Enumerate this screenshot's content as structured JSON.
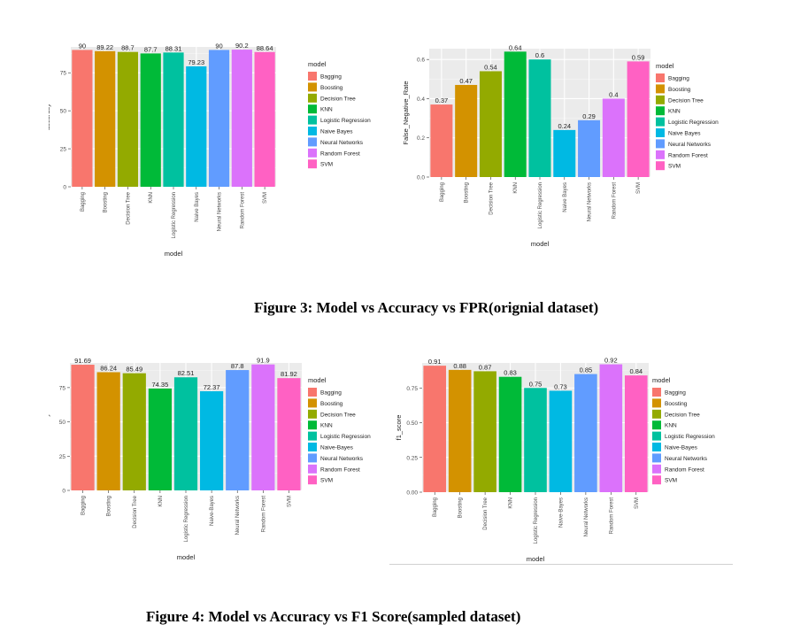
{
  "colors": {
    "Bagging": "#F8766D",
    "Boosting": "#D39200",
    "Decision Tree": "#93AA00",
    "KNN": "#00BA38",
    "Logistic Regression": "#00C19F",
    "Naive Bayes": "#00B9E3",
    "Neural Networks": "#619CFF",
    "Random Forest": "#DB72FB",
    "SVM": "#FF61C3"
  },
  "captions": {
    "figure3": "Figure 3: Model vs Accuracy vs FPR(orignial dataset)",
    "figure4": "Figure 4: Model vs Accuracy vs F1 Score(sampled dataset)"
  },
  "chart_data": [
    {
      "type": "bar",
      "title": "",
      "xlabel": "model",
      "ylabel": "accuracy",
      "legend_title": "model",
      "legend_position": "right",
      "grid": true,
      "categories": [
        "Bagging",
        "Boosting",
        "Decision Tree",
        "KNN",
        "Logistic Regression",
        "Naive Bayes",
        "Neural Networks",
        "Random Forest",
        "SVM"
      ],
      "legend_labels": [
        "Bagging",
        "Boosting",
        "Decision Tree",
        "KNN",
        "Logistic Regression",
        "Naive Bayes",
        "Neural Networks",
        "Random Forest",
        "SVM"
      ],
      "values": [
        90,
        89.22,
        88.7,
        87.7,
        88.31,
        79.23,
        90,
        90.2,
        88.64
      ],
      "data_labels": [
        "90",
        "89.22",
        "88.7",
        "87.7",
        "88.31",
        "79.23",
        "90",
        "90.2",
        "88.64"
      ],
      "ylim": [
        0,
        92
      ],
      "yticks": [
        0,
        25,
        50,
        75
      ],
      "ytick_labels": [
        "0",
        "25",
        "50",
        "75"
      ]
    },
    {
      "type": "bar",
      "title": "",
      "xlabel": "model",
      "ylabel": "False_Negative_Rate",
      "legend_title": "model",
      "legend_position": "right",
      "grid": true,
      "categories": [
        "Bagging",
        "Boosting",
        "Decision Tree",
        "KNN",
        "Logistic Regression",
        "Naive Bayes",
        "Neural Networks",
        "Random Forest",
        "SVM"
      ],
      "legend_labels": [
        "Bagging",
        "Boosting",
        "Decision Tree",
        "KNN",
        "Logistic Regression",
        "Naive Bayes",
        "Neural Networks",
        "Random Forest",
        "SVM"
      ],
      "values": [
        0.37,
        0.47,
        0.54,
        0.64,
        0.6,
        0.24,
        0.29,
        0.4,
        0.59
      ],
      "data_labels": [
        "0.37",
        "0.47",
        "0.54",
        "0.64",
        "0.6",
        "0.24",
        "0.29",
        "0.4",
        "0.59"
      ],
      "ylim": [
        0,
        0.655
      ],
      "yticks": [
        0,
        0.2,
        0.4,
        0.6
      ],
      "ytick_labels": [
        "0.0",
        "0.2",
        "0.4",
        "0.6"
      ]
    },
    {
      "type": "bar",
      "title": "",
      "xlabel": "model",
      "ylabel": "accuracy",
      "legend_title": "model",
      "legend_position": "right",
      "grid": true,
      "categories": [
        "Bagging",
        "Boosting",
        "Decision Tree",
        "KNN",
        "Logistic Regression",
        "Naive-Bayes",
        "Neural Networks",
        "Random Forest",
        "SVM"
      ],
      "legend_labels": [
        "Bagging",
        "Boosting",
        "Decision Tree",
        "KNN",
        "Logistic Regression",
        "Naive-Bayes",
        "Neural Networks",
        "Random Forest",
        "SVM"
      ],
      "values": [
        91.69,
        86.24,
        85.49,
        74.35,
        82.51,
        72.37,
        87.8,
        91.9,
        81.92
      ],
      "data_labels": [
        "91.69",
        "86.24",
        "85.49",
        "74.35",
        "82.51",
        "72.37",
        "87.8",
        "91.9",
        "81.92"
      ],
      "ylim": [
        0,
        93
      ],
      "yticks": [
        0,
        25,
        50,
        75
      ],
      "ytick_labels": [
        "0",
        "25",
        "50",
        "75"
      ]
    },
    {
      "type": "bar",
      "title": "",
      "xlabel": "model",
      "ylabel": "f1_score",
      "legend_title": "model",
      "legend_position": "right",
      "grid": true,
      "categories": [
        "Bagging",
        "Boosting",
        "Decision Tree",
        "KNN",
        "Logistic Regression",
        "Naive-Bayes",
        "Neural Networks",
        "Random Forest",
        "SVM"
      ],
      "legend_labels": [
        "Bagging",
        "Boosting",
        "Decision Tree",
        "KNN",
        "Logistic Regression",
        "Naive-Bayes",
        "Neural Networks",
        "Random Forest",
        "SVM"
      ],
      "values": [
        0.91,
        0.88,
        0.87,
        0.83,
        0.75,
        0.73,
        0.85,
        0.92,
        0.84
      ],
      "data_labels": [
        "0.91",
        "0.88",
        "0.87",
        "0.83",
        "0.75",
        "0.73",
        "0.85",
        "0.92",
        "0.84"
      ],
      "ylim": [
        0,
        0.93
      ],
      "yticks": [
        0,
        0.25,
        0.5,
        0.75
      ],
      "ytick_labels": [
        "0.00",
        "0.25",
        "0.50",
        "0.75"
      ]
    }
  ]
}
